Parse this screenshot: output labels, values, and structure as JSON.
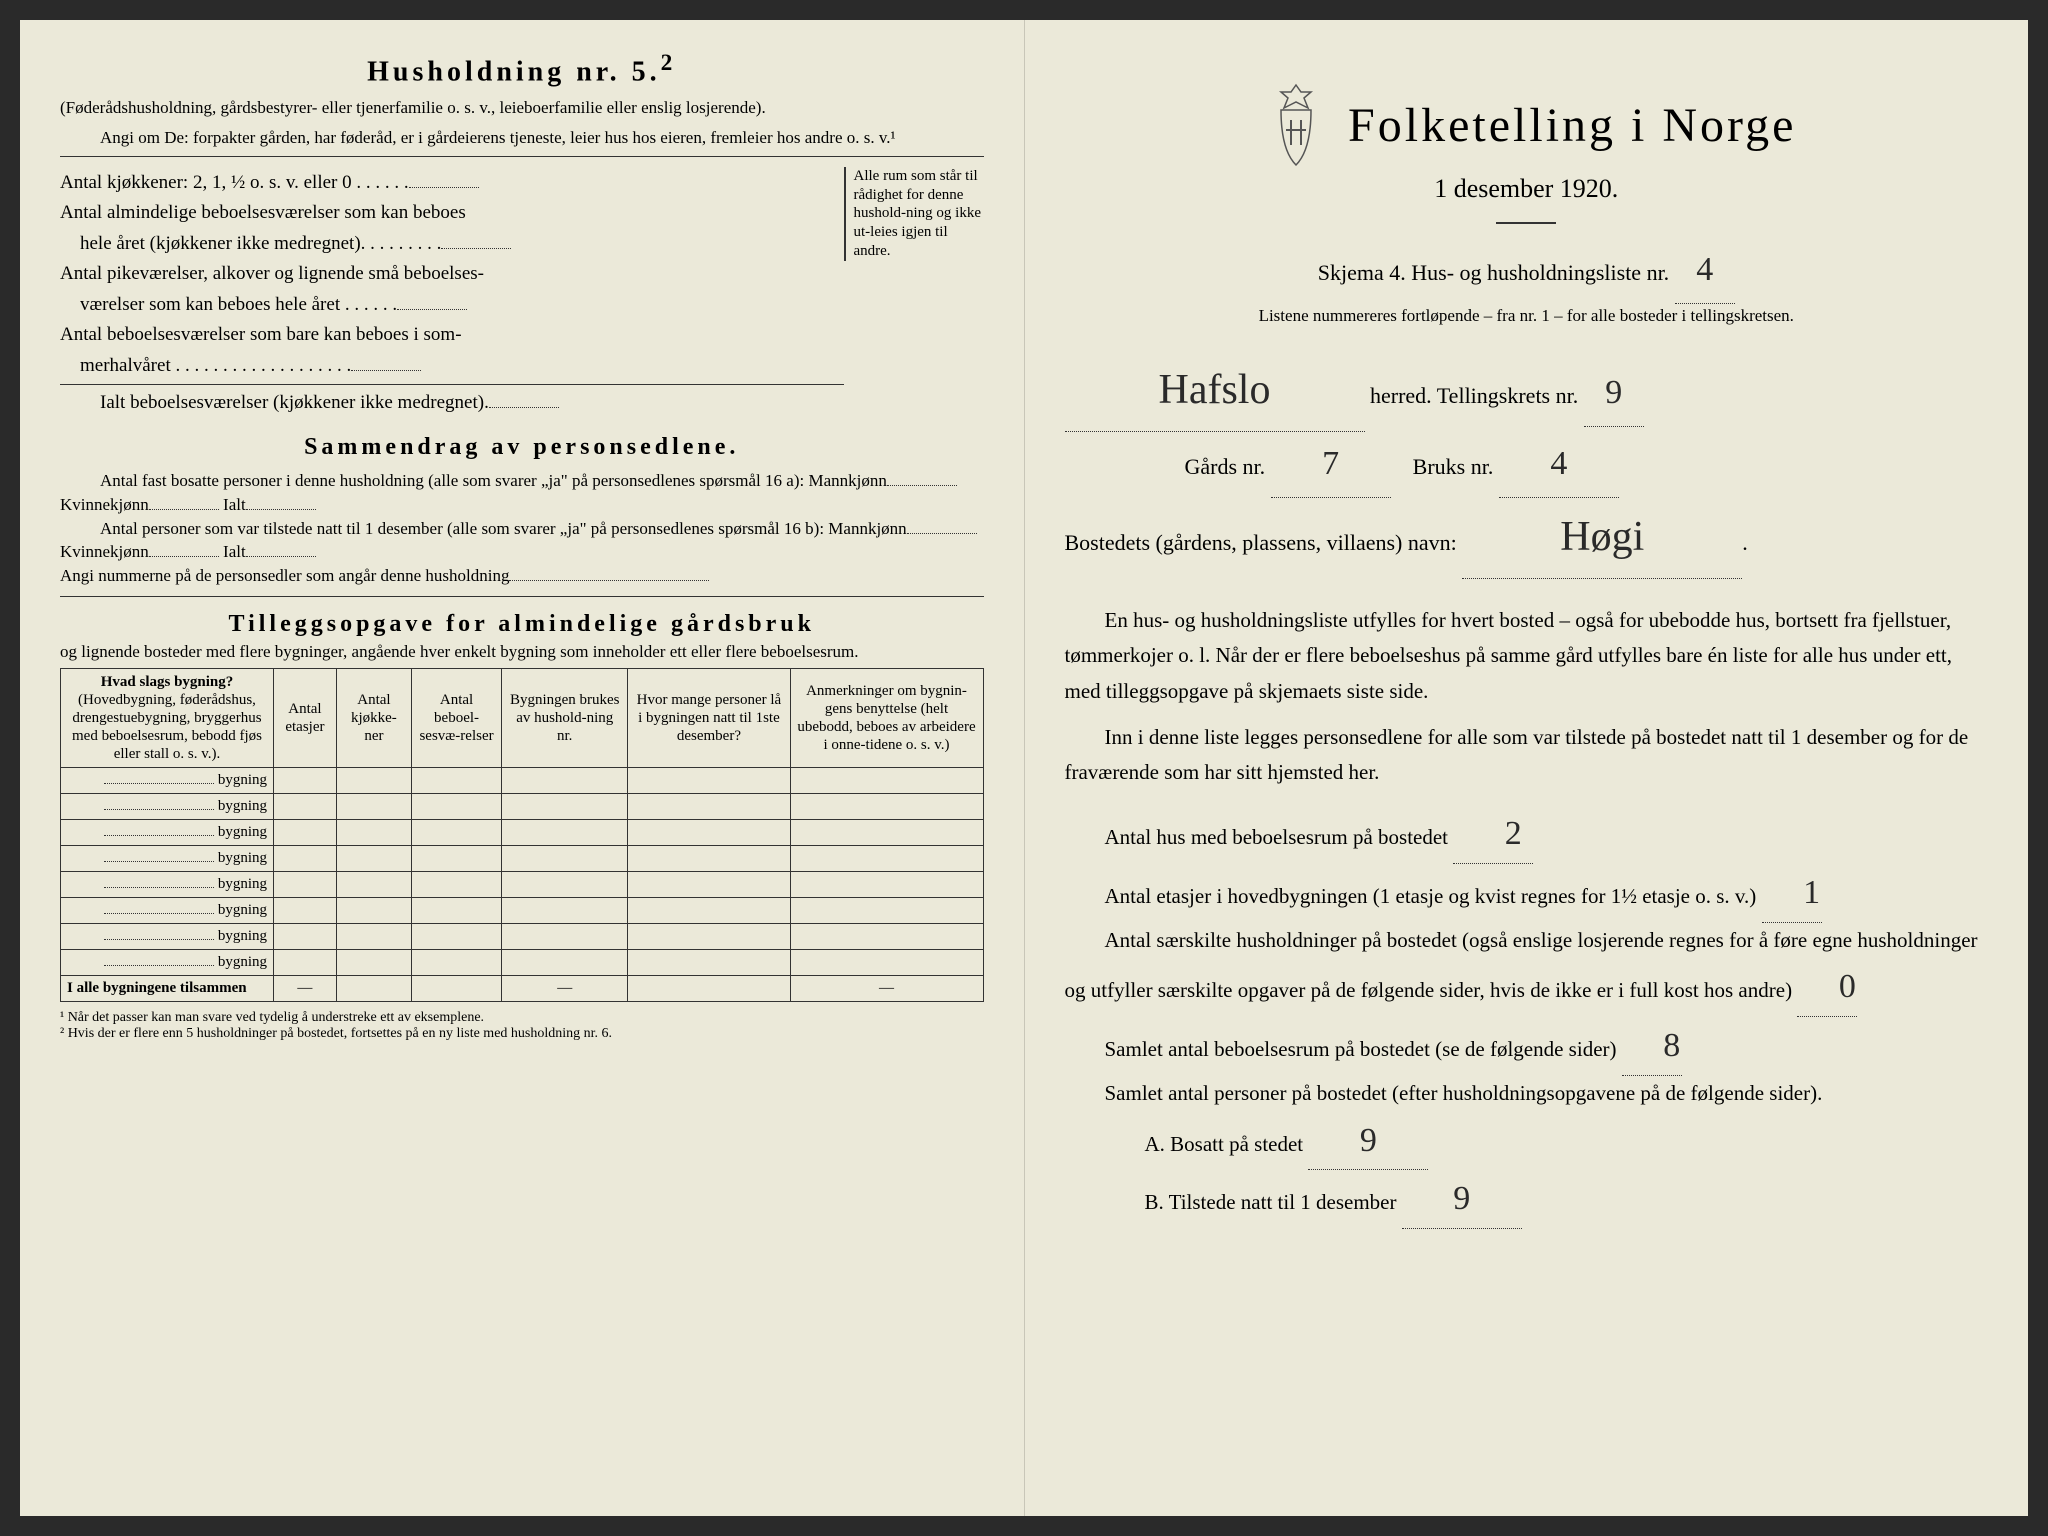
{
  "left": {
    "household_title": "Husholdning nr. 5.",
    "household_sup": "2",
    "household_note": "(Føderådshusholdning, gårdsbestyrer- eller tjenerfamilie o. s. v., leieboerfamilie eller enslig losjerende).",
    "angi_line": "Angi om De: forpakter gården, har føderåd, er i gårdeierens tjeneste, leier hus hos eieren, fremleier hos andre o. s. v.¹",
    "rows": {
      "r1": "Antal kjøkkener: 2, 1, ½ o. s. v. eller 0 . . . . . .",
      "r2a": "Antal almindelige beboelsesværelser som kan beboes",
      "r2b": "hele året (kjøkkener ikke medregnet). . . . . . . . .",
      "r3a": "Antal pikeværelser, alkover og lignende små beboelses-",
      "r3b": "værelser som kan beboes hele året . . . . . .",
      "r4a": "Antal beboelsesværelser som bare kan beboes i som-",
      "r4b": "merhalvåret . . . . . . . . . . . . . . . . . . .",
      "r5": "Ialt beboelsesværelser (kjøkkener ikke medregnet).",
      "brace_text": "Alle rum som står til rådighet for denne hushold-ning og ikke ut-leies igjen til andre."
    },
    "sammendrag_title": "Sammendrag av personsedlene.",
    "samm_p1": "Antal fast bosatte personer i denne husholdning (alle som svarer „ja\" på personsedlenes spørsmål 16 a): Mannkjønn",
    "samm_kvinne": "Kvinnekjønn",
    "samm_ialt": "Ialt",
    "samm_p2": "Antal personer som var tilstede natt til 1 desember (alle som svarer „ja\" på personsedlenes spørsmål 16 b): Mannkjønn",
    "samm_p3": "Angi nummerne på de personsedler som angår denne husholdning",
    "tillegg_title": "Tilleggsopgave for almindelige gårdsbruk",
    "tillegg_sub": "og lignende bosteder med flere bygninger, angående hver enkelt bygning som inneholder ett eller flere beboelsesrum.",
    "table": {
      "h1": "Hvad slags bygning?",
      "h1_sub": "(Hovedbygning, føderådshus, drengestuebygning, bryggerhus med beboelsesrum, bebodd fjøs eller stall o. s. v.).",
      "h2": "Antal etasjer",
      "h3": "Antal kjøkke-ner",
      "h4": "Antal beboel-sesvæ-relser",
      "h5": "Bygningen brukes av hushold-ning nr.",
      "h6": "Hvor mange personer lå i bygningen natt til 1ste desember?",
      "h7": "Anmerkninger om bygnin-gens benyttelse (helt ubebodd, beboes av arbeidere i onne-tidene o. s. v.)",
      "row_label": "bygning",
      "total_label": "I alle bygningene tilsammen"
    },
    "footnote1": "¹ Når det passer kan man svare ved tydelig å understreke ett av eksemplene.",
    "footnote2": "² Hvis der er flere enn 5 husholdninger på bostedet, fortsettes på en ny liste med husholdning nr. 6."
  },
  "right": {
    "main_title": "Folketelling i Norge",
    "date": "1 desember 1920.",
    "skjema_line": "Skjema 4.  Hus- og husholdningsliste nr.",
    "liste_nr": "4",
    "listene_line": "Listene nummereres fortløpende – fra nr. 1 – for alle bosteder i tellingskretsen.",
    "herred_value": "Hafslo",
    "herred_label": "herred.   Tellingskrets nr.",
    "krets_nr": "9",
    "gards_label": "Gårds nr.",
    "gards_nr": "7",
    "bruks_label": "Bruks nr.",
    "bruks_nr": "4",
    "bosted_label": "Bostedets (gårdens, plassens, villaens) navn:",
    "bosted_value": "Høgi",
    "para1": "En hus- og husholdningsliste utfylles for hvert bosted – også for ubebodde hus, bortsett fra fjellstuer, tømmerkojer o. l.  Når der er flere beboelseshus på samme gård utfylles bare én liste for alle hus under ett, med tilleggsopgave på skjemaets siste side.",
    "para2": "Inn i denne liste legges personsedlene for alle som var tilstede på bostedet natt til 1 desember og for de fraværende som har sitt hjemsted her.",
    "q1": "Antal hus med beboelsesrum på bostedet",
    "q1_val": "2",
    "q2": "Antal etasjer i hovedbygningen (1 etasje og kvist regnes for 1½ etasje o. s. v.)",
    "q2_val": "1",
    "q3": "Antal særskilte husholdninger på bostedet (også enslige losjerende regnes for å føre egne husholdninger og utfyller særskilte opgaver på de følgende sider, hvis de ikke er i full kost hos andre)",
    "q3_val": "0",
    "q4": "Samlet antal beboelsesrum på bostedet (se de følgende sider)",
    "q4_val": "8",
    "q5": "Samlet antal personer på bostedet (efter husholdningsopgavene på de følgende sider).",
    "qA": "A.  Bosatt på stedet",
    "qA_val": "9",
    "qB": "B.  Tilstede natt til 1 desember",
    "qB_val": "9"
  }
}
